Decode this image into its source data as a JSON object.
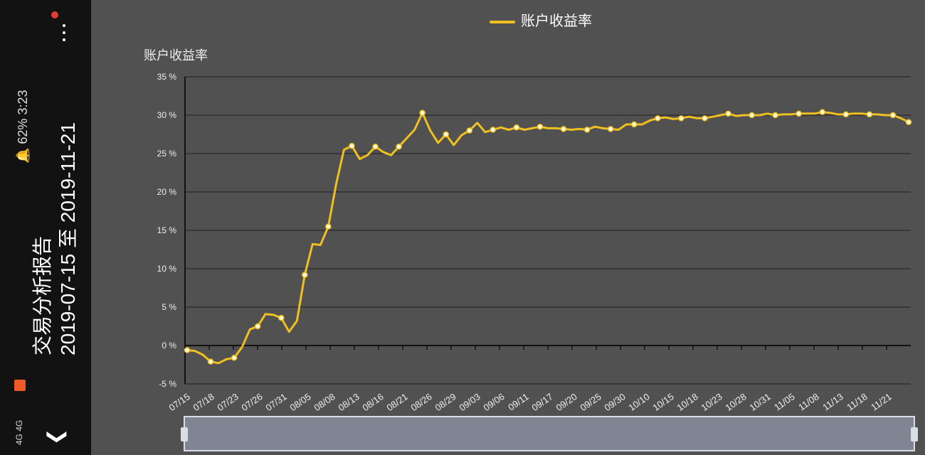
{
  "sidebar": {
    "title": "交易分析报告",
    "date_range": "2019-07-15 至 2019-11-21",
    "status_left": "4G 4G",
    "status_right": "🔔 62%  3:23",
    "menu_icon": "vertical-dots",
    "collapse_icon": "chevron-down"
  },
  "chart_data": {
    "type": "line",
    "title": "",
    "legend": [
      "账户收益率"
    ],
    "ylabel": "账户收益率",
    "y_ticks": [
      "35 %",
      "30 %",
      "25 %",
      "20 %",
      "15 %",
      "10 %",
      "5 %",
      "0 %",
      "-5 %"
    ],
    "ylim": [
      -5,
      35
    ],
    "x_tick_labels": [
      "07/15",
      "07/18",
      "07/23",
      "07/26",
      "07/31",
      "08/05",
      "08/08",
      "08/13",
      "08/16",
      "08/21",
      "08/26",
      "08/29",
      "09/03",
      "09/06",
      "09/11",
      "09/17",
      "09/20",
      "09/25",
      "09/30",
      "10/10",
      "10/15",
      "10/18",
      "10/23",
      "10/28",
      "10/31",
      "11/05",
      "11/08",
      "11/13",
      "11/18",
      "11/21"
    ],
    "series": [
      {
        "name": "账户收益率",
        "color": "#f0c020",
        "values": [
          -0.6,
          -0.7,
          -1.2,
          -2.1,
          -2.3,
          -1.8,
          -1.6,
          -0.2,
          2.1,
          2.5,
          4.1,
          4.0,
          3.6,
          1.8,
          3.2,
          9.2,
          13.2,
          13.1,
          15.5,
          21.0,
          25.5,
          26.0,
          24.3,
          24.8,
          25.9,
          25.2,
          24.8,
          25.9,
          27.0,
          28.1,
          30.3,
          28.0,
          26.4,
          27.5,
          26.1,
          27.4,
          28.0,
          29.0,
          27.8,
          28.1,
          28.4,
          28.1,
          28.4,
          28.1,
          28.3,
          28.5,
          28.3,
          28.3,
          28.2,
          28.1,
          28.2,
          28.1,
          28.5,
          28.3,
          28.2,
          28.1,
          28.8,
          28.8,
          28.8,
          29.3,
          29.6,
          29.7,
          29.5,
          29.6,
          29.8,
          29.6,
          29.6,
          29.8,
          30.0,
          30.2,
          29.9,
          30.0,
          30.0,
          30.0,
          30.2,
          30.0,
          30.1,
          30.1,
          30.2,
          30.2,
          30.2,
          30.4,
          30.3,
          30.1,
          30.1,
          30.2,
          30.2,
          30.1,
          30.1,
          30.0,
          30.0,
          29.6,
          29.1
        ]
      }
    ]
  }
}
